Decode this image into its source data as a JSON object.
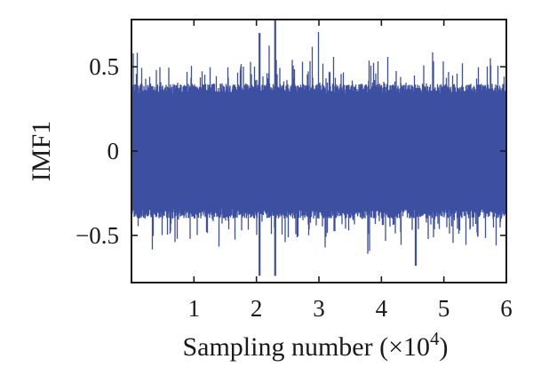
{
  "chart_data": {
    "type": "line",
    "ylabel": "IMF1",
    "xlabel": "Sampling number (×10",
    "xlabel_exponent": "4",
    "xlabel_suffix": ")",
    "xlim": [
      0,
      6
    ],
    "ylim": [
      -0.78,
      0.78
    ],
    "xticks": [
      1,
      2,
      3,
      4,
      5,
      6
    ],
    "xtick_labels": [
      "1",
      "2",
      "3",
      "4",
      "5",
      "6"
    ],
    "yticks": [
      -0.5,
      0,
      0.5
    ],
    "ytick_labels": [
      "−0.5",
      "0",
      "0.5"
    ],
    "grid": false,
    "series": [
      {
        "color": "#3c4fa0",
        "x_range": [
          0,
          6
        ],
        "num_points": 60000,
        "typical_amplitude": 0.4,
        "peaks": [
          {
            "x": 2.05,
            "y": 0.7
          },
          {
            "x": 2.3,
            "y": 0.8
          },
          {
            "x": 2.05,
            "y": -0.74
          },
          {
            "x": 2.3,
            "y": -0.74
          },
          {
            "x": 4.55,
            "y": -0.68
          }
        ]
      }
    ]
  }
}
